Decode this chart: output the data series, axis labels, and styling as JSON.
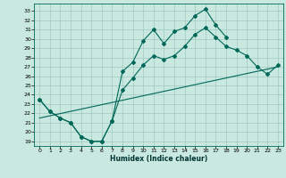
{
  "xlabel": "Humidex (Indice chaleur)",
  "bg_color": "#c8e8e0",
  "grid_color": "#a0c8c0",
  "line_color": "#006858",
  "xlim": [
    -0.5,
    23.5
  ],
  "ylim": [
    18.5,
    33.8
  ],
  "xticks": [
    0,
    1,
    2,
    3,
    4,
    5,
    6,
    7,
    8,
    9,
    10,
    11,
    12,
    13,
    14,
    15,
    16,
    17,
    18,
    19,
    20,
    21,
    22,
    23
  ],
  "yticks": [
    19,
    20,
    21,
    22,
    23,
    24,
    25,
    26,
    27,
    28,
    29,
    30,
    31,
    32,
    33
  ],
  "line1_x": [
    0,
    1,
    2,
    3,
    4,
    5,
    6,
    7,
    8,
    9,
    10,
    11,
    12,
    13,
    14,
    15,
    16,
    17,
    18,
    19,
    20,
    21,
    22,
    23
  ],
  "line1_y": [
    23.5,
    22.2,
    21.5,
    21.0,
    19.5,
    19.0,
    19.0,
    21.2,
    26.5,
    27.5,
    29.8,
    31.0,
    29.5,
    30.8,
    31.2,
    32.5,
    33.2,
    31.5,
    30.2,
    null,
    null,
    null,
    null,
    null
  ],
  "line2_x": [
    0,
    1,
    2,
    3,
    4,
    5,
    6,
    7,
    8,
    9,
    10,
    11,
    12,
    13,
    14,
    15,
    16,
    17,
    18,
    19,
    20,
    21,
    22,
    23
  ],
  "line2_y": [
    23.5,
    22.2,
    21.5,
    21.0,
    19.5,
    19.0,
    19.0,
    21.2,
    24.5,
    25.8,
    27.2,
    28.2,
    27.8,
    28.2,
    29.2,
    30.5,
    31.2,
    30.2,
    29.2,
    28.8,
    28.2,
    27.0,
    26.2,
    27.2
  ],
  "line3_x": [
    0,
    23
  ],
  "line3_y": [
    21.5,
    27.0
  ]
}
